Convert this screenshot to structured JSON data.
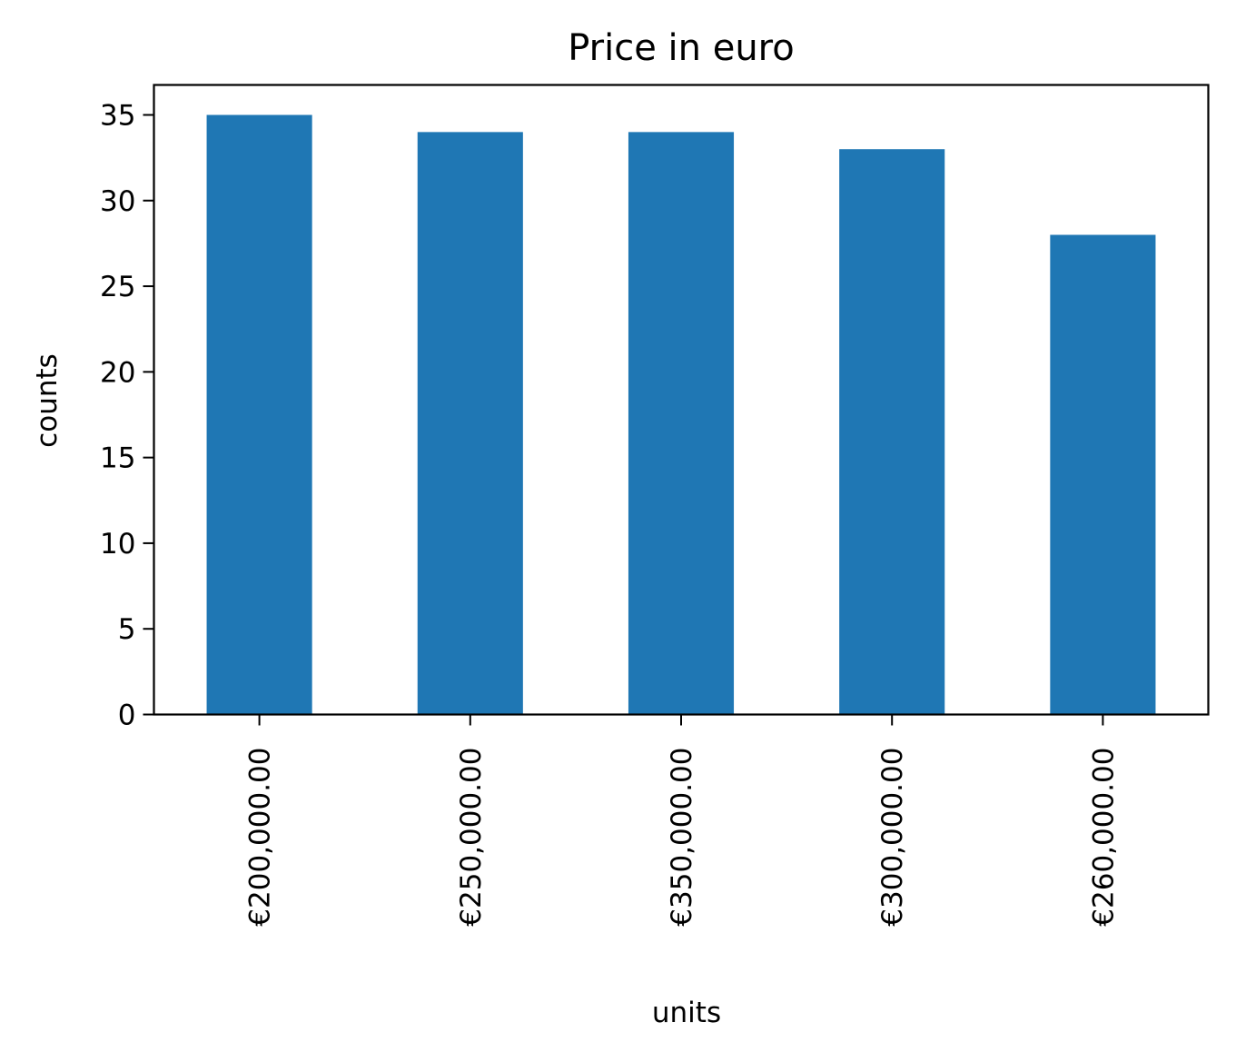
{
  "chart_data": {
    "type": "bar",
    "title": "Price in euro",
    "xlabel": "units",
    "ylabel": "counts",
    "categories": [
      "€200,000.00",
      "€250,000.00",
      "€350,000.00",
      "€300,000.00",
      "€260,000.00"
    ],
    "values": [
      35,
      34,
      34,
      33,
      28
    ],
    "ylim": [
      0,
      36.75
    ],
    "yticks": [
      0,
      5,
      10,
      15,
      20,
      25,
      30,
      35
    ],
    "bar_color": "#1f77b4",
    "grid": false,
    "legend": false,
    "x_tick_rotation": "vertical"
  }
}
